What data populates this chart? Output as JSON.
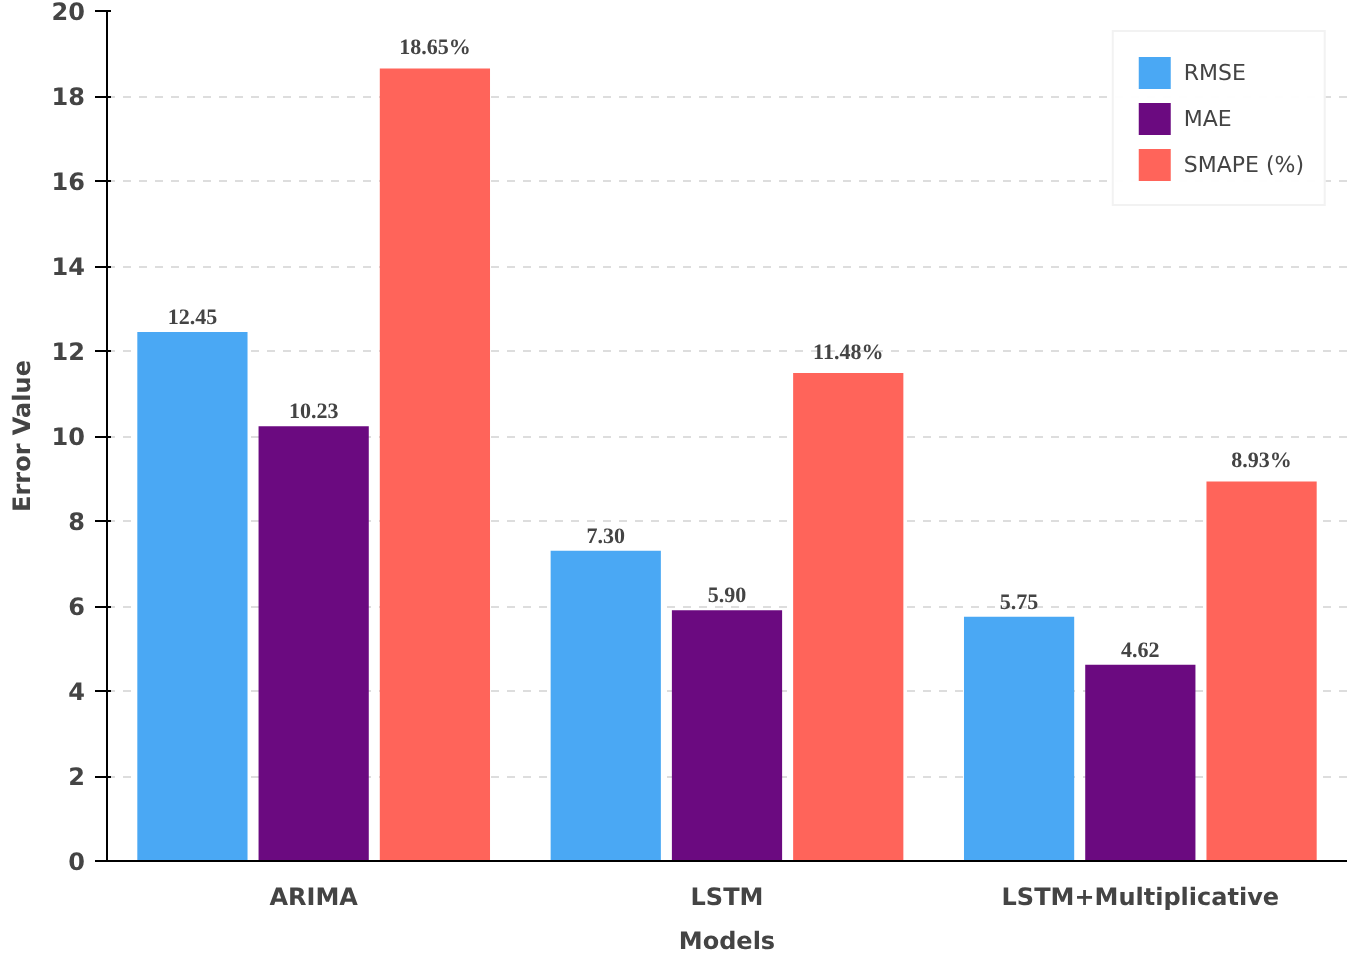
{
  "chart_data": {
    "type": "bar",
    "xlabel": "Models",
    "ylabel": "Error Value",
    "categories": [
      "ARIMA",
      "LSTM",
      "LSTM+Multiplicative"
    ],
    "series": [
      {
        "name": "RMSE",
        "color": "#4aa8f4",
        "values": [
          12.45,
          7.3,
          5.75
        ],
        "value_labels": [
          "12.45",
          "7.30",
          "5.75"
        ]
      },
      {
        "name": "MAE",
        "color": "#6b0a80",
        "values": [
          10.23,
          5.9,
          4.62
        ],
        "value_labels": [
          "10.23",
          "5.90",
          "4.62"
        ]
      },
      {
        "name": "SMAPE (%)",
        "color": "#ff645a",
        "values": [
          18.65,
          11.48,
          8.93
        ],
        "value_labels": [
          "18.65%",
          "11.48%",
          "8.93%"
        ]
      }
    ],
    "ylim": [
      0,
      20
    ],
    "yticks": [
      0,
      2,
      4,
      6,
      8,
      10,
      12,
      14,
      16,
      18,
      20
    ],
    "grid": "y",
    "legend": "top right"
  }
}
